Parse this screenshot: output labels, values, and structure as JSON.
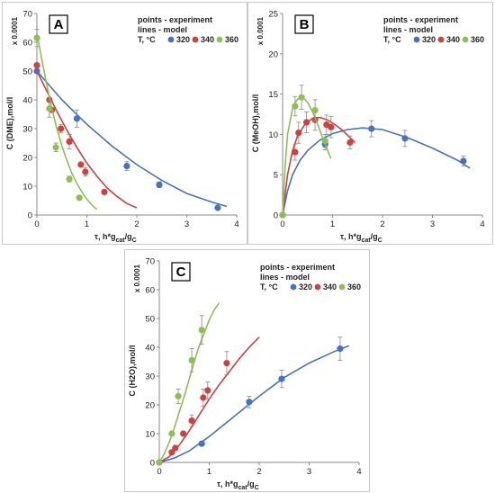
{
  "chart_data": [
    {
      "type": "scatter",
      "panel_label": "A",
      "legend_lines": [
        "points - experiment",
        "lines - model"
      ],
      "legend_prefix": "T, °C",
      "scale_label": "x 0.0001",
      "xlabel": "τ, h*g",
      "xlabel_sub1": "cat",
      "xlabel_mid": "/g",
      "xlabel_sub2": "C",
      "ylabel": "C (DME),mol/l",
      "xlim": [
        0,
        4
      ],
      "ylim": [
        0,
        70
      ],
      "xticks": [
        0,
        1,
        2,
        3,
        4
      ],
      "yticks": [
        0,
        10,
        20,
        30,
        40,
        50,
        60,
        70
      ],
      "series": [
        {
          "name": "320",
          "color": "#4472c4",
          "points": [
            [
              0,
              50
            ],
            [
              0.8,
              33.5
            ],
            [
              1.8,
              17
            ],
            [
              2.45,
              10.5
            ],
            [
              3.62,
              2.5
            ]
          ],
          "err": [
            0,
            3,
            1.5,
            1,
            0.5
          ],
          "model": [
            [
              0,
              50
            ],
            [
              0.5,
              40
            ],
            [
              1,
              31.5
            ],
            [
              1.5,
              24
            ],
            [
              2,
              17.5
            ],
            [
              2.5,
              12
            ],
            [
              3,
              7.5
            ],
            [
              3.5,
              4.5
            ],
            [
              3.8,
              3
            ]
          ]
        },
        {
          "name": "340",
          "color": "#d13f3f",
          "points": [
            [
              0,
              52
            ],
            [
              0.25,
              40
            ],
            [
              0.3,
              36.5
            ],
            [
              0.48,
              30
            ],
            [
              0.65,
              25.5
            ],
            [
              0.88,
              17.5
            ],
            [
              0.97,
              15
            ],
            [
              1.35,
              8
            ]
          ],
          "err": [
            0,
            0,
            0,
            1.5,
            2.5,
            0,
            1.5,
            0
          ],
          "model": [
            [
              0,
              50
            ],
            [
              0.2,
              43
            ],
            [
              0.4,
              36
            ],
            [
              0.6,
              29.5
            ],
            [
              0.8,
              23.5
            ],
            [
              1,
              18
            ],
            [
              1.2,
              13.5
            ],
            [
              1.4,
              9.5
            ],
            [
              1.6,
              6.5
            ],
            [
              1.8,
              4
            ],
            [
              2,
              2.5
            ]
          ]
        },
        {
          "name": "360",
          "color": "#8cc152",
          "points": [
            [
              0,
              61.5
            ],
            [
              0.25,
              37
            ],
            [
              0.38,
              23.5
            ],
            [
              0.65,
              12.5
            ],
            [
              0.85,
              6
            ]
          ],
          "err": [
            3,
            3,
            1.5,
            1,
            0
          ],
          "model": [
            [
              0,
              63
            ],
            [
              0.1,
              54
            ],
            [
              0.2,
              45
            ],
            [
              0.3,
              37
            ],
            [
              0.4,
              30
            ],
            [
              0.5,
              24
            ],
            [
              0.6,
              19
            ],
            [
              0.7,
              14.5
            ],
            [
              0.8,
              11
            ],
            [
              0.9,
              8
            ],
            [
              1,
              5.5
            ],
            [
              1.1,
              3.5
            ],
            [
              1.2,
              2
            ]
          ]
        }
      ]
    },
    {
      "type": "scatter",
      "panel_label": "B",
      "legend_lines": [
        "points - experiment",
        "lines - model"
      ],
      "legend_prefix": "T, °C",
      "scale_label": "x 0.0001",
      "xlabel": "τ, h*g",
      "xlabel_sub1": "cat",
      "xlabel_mid": "/g",
      "xlabel_sub2": "C",
      "ylabel": "C (MeOH),mol/l",
      "xlim": [
        0,
        4
      ],
      "ylim": [
        0,
        25
      ],
      "xticks": [
        0,
        1,
        2,
        3,
        4
      ],
      "yticks": [
        0,
        5,
        10,
        15,
        20,
        25
      ],
      "series": [
        {
          "name": "320",
          "color": "#4472c4",
          "points": [
            [
              0,
              0
            ],
            [
              0.85,
              8.8
            ],
            [
              1.78,
              10.7
            ],
            [
              2.45,
              9.5
            ],
            [
              3.62,
              6.7
            ]
          ],
          "err": [
            0,
            0.7,
            1,
            1,
            0.6
          ],
          "model": [
            [
              0,
              0
            ],
            [
              0.1,
              3
            ],
            [
              0.2,
              5
            ],
            [
              0.35,
              6.8
            ],
            [
              0.5,
              8
            ],
            [
              0.75,
              9.3
            ],
            [
              1,
              10.1
            ],
            [
              1.3,
              10.6
            ],
            [
              1.6,
              10.8
            ],
            [
              2,
              10.6
            ],
            [
              2.5,
              9.6
            ],
            [
              3,
              8.3
            ],
            [
              3.5,
              6.8
            ],
            [
              3.75,
              5.8
            ]
          ]
        },
        {
          "name": "340",
          "color": "#d13f3f",
          "points": [
            [
              0,
              0
            ],
            [
              0.25,
              7.8
            ],
            [
              0.32,
              10.2
            ],
            [
              0.48,
              11.5
            ],
            [
              0.65,
              11.8
            ],
            [
              0.88,
              11.2
            ],
            [
              0.97,
              10.9
            ],
            [
              1.35,
              9
            ]
          ],
          "err": [
            0,
            1,
            1.3,
            1.3,
            1.3,
            1.2,
            1.3,
            0.8
          ],
          "model": [
            [
              0,
              0
            ],
            [
              0.1,
              5
            ],
            [
              0.2,
              8
            ],
            [
              0.3,
              9.8
            ],
            [
              0.45,
              11.3
            ],
            [
              0.6,
              12
            ],
            [
              0.75,
              12.1
            ],
            [
              0.9,
              11.8
            ],
            [
              1.05,
              11.2
            ],
            [
              1.2,
              10.5
            ],
            [
              1.35,
              9.6
            ],
            [
              1.45,
              9
            ]
          ]
        },
        {
          "name": "360",
          "color": "#8cc152",
          "points": [
            [
              0,
              0
            ],
            [
              0.25,
              13.5
            ],
            [
              0.38,
              14.6
            ],
            [
              0.65,
              13
            ],
            [
              0.85,
              9.2
            ]
          ],
          "err": [
            0,
            1.2,
            1.5,
            1.3,
            0.8
          ],
          "model": [
            [
              0,
              0
            ],
            [
              0.05,
              6
            ],
            [
              0.1,
              10
            ],
            [
              0.2,
              13.2
            ],
            [
              0.3,
              14.4
            ],
            [
              0.4,
              14.6
            ],
            [
              0.5,
              14
            ],
            [
              0.6,
              12.8
            ],
            [
              0.7,
              11.3
            ],
            [
              0.8,
              9.6
            ],
            [
              0.9,
              8
            ],
            [
              0.97,
              7
            ]
          ]
        }
      ]
    },
    {
      "type": "scatter",
      "panel_label": "C",
      "legend_lines": [
        "points - experiment",
        "lines - model"
      ],
      "legend_prefix": "T, °C",
      "scale_label": "x 0.0001",
      "xlabel": "τ, h*g",
      "xlabel_sub1": "cat",
      "xlabel_mid": "/g",
      "xlabel_sub2": "C",
      "ylabel": "C (H2O),mol/l",
      "xlim": [
        0,
        4
      ],
      "ylim": [
        0,
        70
      ],
      "xticks": [
        0,
        1,
        2,
        3,
        4
      ],
      "yticks": [
        0,
        10,
        20,
        30,
        40,
        50,
        60,
        70
      ],
      "series": [
        {
          "name": "320",
          "color": "#4472c4",
          "points": [
            [
              0,
              0
            ],
            [
              0.85,
              6.5
            ],
            [
              1.8,
              21
            ],
            [
              2.45,
              29
            ],
            [
              3.62,
              39.5
            ]
          ],
          "err": [
            0,
            0,
            2,
            3,
            4
          ],
          "model": [
            [
              0,
              0
            ],
            [
              0.3,
              1.5
            ],
            [
              0.6,
              4
            ],
            [
              1,
              9
            ],
            [
              1.5,
              16
            ],
            [
              2,
              23
            ],
            [
              2.5,
              29.5
            ],
            [
              3,
              34.5
            ],
            [
              3.5,
              38.5
            ],
            [
              3.8,
              40.5
            ]
          ]
        },
        {
          "name": "340",
          "color": "#d13f3f",
          "points": [
            [
              0,
              0
            ],
            [
              0.25,
              3.5
            ],
            [
              0.32,
              5
            ],
            [
              0.48,
              10
            ],
            [
              0.65,
              14.5
            ],
            [
              0.88,
              22.5
            ],
            [
              0.97,
              25
            ],
            [
              1.35,
              34.5
            ]
          ],
          "err": [
            0,
            0,
            0,
            0,
            2,
            3,
            3,
            4
          ],
          "model": [
            [
              0,
              0
            ],
            [
              0.2,
              2
            ],
            [
              0.4,
              6
            ],
            [
              0.6,
              11
            ],
            [
              0.8,
              16.5
            ],
            [
              1,
              22
            ],
            [
              1.2,
              27
            ],
            [
              1.4,
              31.5
            ],
            [
              1.6,
              36
            ],
            [
              1.8,
              40
            ],
            [
              2,
              43.5
            ]
          ]
        },
        {
          "name": "360",
          "color": "#8cc152",
          "points": [
            [
              0,
              0
            ],
            [
              0.25,
              10
            ],
            [
              0.38,
              23
            ],
            [
              0.65,
              35.5
            ],
            [
              0.85,
              46
            ]
          ],
          "err": [
            0,
            0,
            2.5,
            4,
            5
          ],
          "model": [
            [
              0,
              0
            ],
            [
              0.1,
              3
            ],
            [
              0.2,
              7
            ],
            [
              0.3,
              12
            ],
            [
              0.4,
              17.5
            ],
            [
              0.5,
              23
            ],
            [
              0.6,
              29
            ],
            [
              0.7,
              35
            ],
            [
              0.8,
              40.5
            ],
            [
              0.9,
              45
            ],
            [
              1,
              49.5
            ],
            [
              1.1,
              53
            ],
            [
              1.2,
              55.5
            ]
          ]
        }
      ]
    }
  ]
}
